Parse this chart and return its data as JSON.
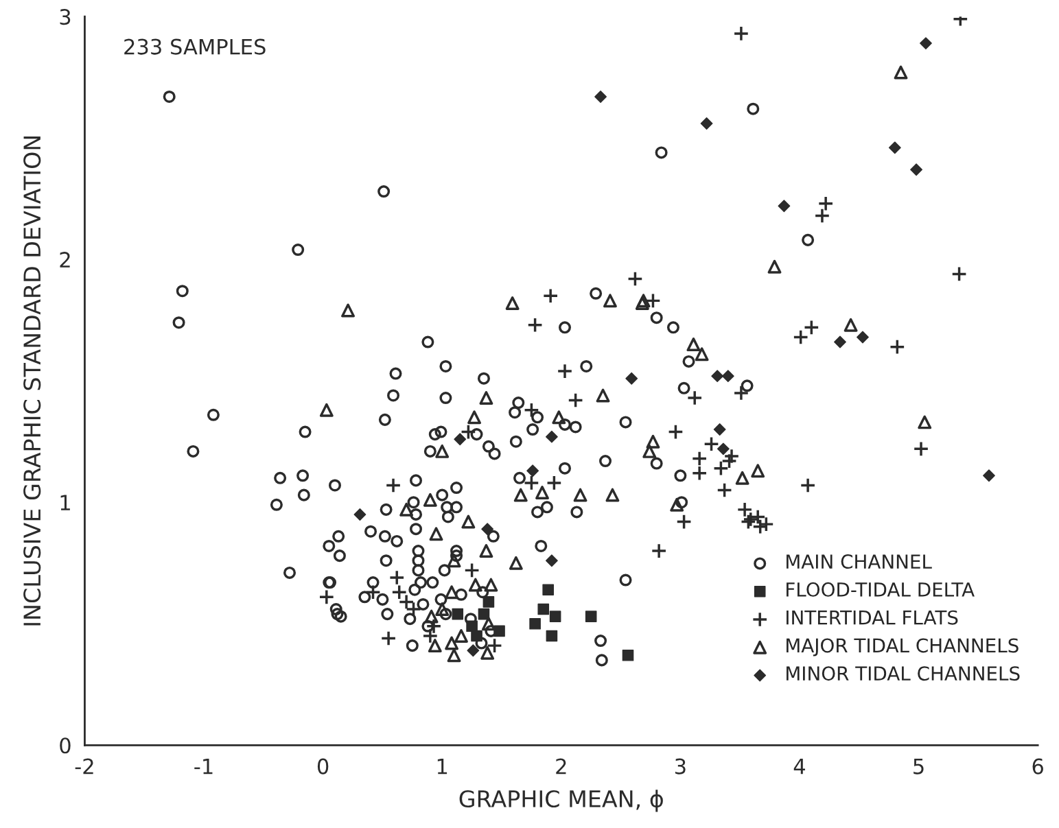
{
  "chart_data": {
    "type": "scatter",
    "xlabel": "GRAPHIC MEAN, ϕ",
    "ylabel": "INCLUSIVE GRAPHIC STANDARD DEVIATION",
    "annotations": [
      "233 SAMPLES"
    ],
    "xlim": [
      -2,
      6
    ],
    "xticks": [
      -2,
      -1,
      0,
      1,
      2,
      3,
      4,
      5,
      6
    ],
    "ylim": [
      0,
      3
    ],
    "yticks": [
      0,
      1,
      2,
      3
    ],
    "grid": false,
    "legend": "bottom right",
    "series": [
      {
        "name": "MAIN CHANNEL",
        "color": "#2b2b2b",
        "marker": "circle",
        "x": [
          -1.29,
          0.51,
          -0.21,
          -1.18,
          -1.21,
          -0.92,
          -1.09,
          -0.15,
          -0.36,
          -0.17,
          -0.39,
          -0.16,
          0.1,
          -0.28,
          0.05,
          0.13,
          0.14,
          0.05,
          0.12,
          0.15,
          0.61,
          0.59,
          0.52,
          0.88,
          1.03,
          1.03,
          1.35,
          0.94,
          0.99,
          0.9,
          1.29,
          1.39,
          1.44,
          0.78,
          0.53,
          0.76,
          1.0,
          1.12,
          1.04,
          1.05,
          0.4,
          0.52,
          0.62,
          0.78,
          0.8,
          0.8,
          0.8,
          0.53,
          0.42,
          0.5,
          1.12,
          1.12,
          1.02,
          0.54,
          0.73,
          0.75,
          0.77,
          0.82,
          0.92,
          0.84,
          0.35,
          0.99,
          1.16,
          1.03,
          1.34,
          1.43,
          1.24,
          1.33,
          0.88,
          1.41,
          1.64,
          1.61,
          1.62,
          1.65,
          0.78,
          1.12,
          2.21,
          1.8,
          2.03,
          2.12,
          1.76,
          2.54,
          2.37,
          2.8,
          3.0,
          2.03,
          1.8,
          1.88,
          2.13,
          3.01,
          3.03,
          3.56,
          3.07,
          2.94,
          2.29,
          2.03,
          2.8,
          2.84,
          3.61,
          4.07,
          2.54,
          2.33,
          2.34,
          1.83,
          0.06,
          0.11
        ],
        "values": [
          2.67,
          2.28,
          2.04,
          1.87,
          1.74,
          1.36,
          1.21,
          1.29,
          1.1,
          1.11,
          0.99,
          1.03,
          1.07,
          0.71,
          0.82,
          0.86,
          0.78,
          0.67,
          0.54,
          0.53,
          1.53,
          1.44,
          1.34,
          1.66,
          1.56,
          1.43,
          1.51,
          1.28,
          1.29,
          1.21,
          1.28,
          1.23,
          1.2,
          1.09,
          0.97,
          1.0,
          1.03,
          1.06,
          0.98,
          0.94,
          0.88,
          0.86,
          0.84,
          0.89,
          0.8,
          0.76,
          0.72,
          0.76,
          0.67,
          0.6,
          0.8,
          0.78,
          0.72,
          0.54,
          0.52,
          0.41,
          0.64,
          0.67,
          0.67,
          0.58,
          0.61,
          0.6,
          0.62,
          0.54,
          0.63,
          0.86,
          0.52,
          0.42,
          0.49,
          0.47,
          1.41,
          1.37,
          1.25,
          1.1,
          0.95,
          0.98,
          1.56,
          1.35,
          1.32,
          1.31,
          1.3,
          1.33,
          1.17,
          1.16,
          1.11,
          1.14,
          0.96,
          0.98,
          0.96,
          1.0,
          1.47,
          1.48,
          1.58,
          1.72,
          1.86,
          1.72,
          1.76,
          2.44,
          2.62,
          2.08,
          0.68,
          0.43,
          0.35,
          0.82,
          0.67,
          0.56
        ]
      },
      {
        "name": "FLOOD-TIDAL DELTA",
        "color": "#2b2b2b",
        "marker": "square",
        "x": [
          1.13,
          1.35,
          1.25,
          1.29,
          1.39,
          1.48,
          1.78,
          1.85,
          1.89,
          1.92,
          1.95,
          2.25,
          2.56
        ],
        "values": [
          0.54,
          0.54,
          0.49,
          0.45,
          0.59,
          0.47,
          0.5,
          0.56,
          0.64,
          0.45,
          0.53,
          0.53,
          0.37
        ]
      },
      {
        "name": "INTERTIDAL FLATS",
        "color": "#2b2b2b",
        "marker": "cross",
        "x": [
          3.51,
          5.35,
          4.22,
          4.19,
          5.34,
          2.62,
          2.77,
          1.91,
          1.78,
          4.01,
          4.1,
          4.82,
          2.03,
          2.12,
          3.12,
          3.51,
          5.02,
          4.07,
          2.82,
          2.96,
          1.75,
          3.26,
          3.43,
          3.16,
          3.41,
          3.16,
          3.34,
          3.37,
          1.75,
          1.94,
          3.03,
          3.54,
          3.59,
          3.65,
          3.67,
          3.72,
          3.57,
          0.03,
          0.62,
          0.42,
          0.64,
          0.7,
          0.76,
          0.55,
          0.93,
          0.9,
          1.25,
          1.44,
          0.59,
          1.22
        ],
        "values": [
          2.93,
          2.99,
          2.23,
          2.18,
          1.94,
          1.92,
          1.83,
          1.85,
          1.73,
          1.68,
          1.72,
          1.64,
          1.54,
          1.42,
          1.43,
          1.45,
          1.22,
          1.07,
          0.8,
          1.29,
          1.38,
          1.24,
          1.19,
          1.18,
          1.17,
          1.12,
          1.14,
          1.05,
          1.08,
          1.08,
          0.92,
          0.97,
          0.93,
          0.94,
          0.9,
          0.91,
          0.92,
          0.61,
          0.69,
          0.63,
          0.63,
          0.59,
          0.56,
          0.44,
          0.49,
          0.45,
          0.72,
          0.41,
          1.07,
          1.29
        ]
      },
      {
        "name": "MAJOR TIDAL CHANNELS",
        "color": "#2b2b2b",
        "marker": "triangle",
        "x": [
          4.85,
          3.79,
          0.21,
          0.03,
          1.59,
          2.41,
          2.68,
          3.11,
          3.18,
          4.43,
          5.05,
          2.35,
          1.37,
          1.27,
          1.98,
          1.0,
          2.77,
          2.74,
          3.65,
          3.52,
          1.66,
          1.84,
          2.16,
          2.43,
          2.97,
          0.7,
          0.9,
          0.95,
          1.22,
          1.37,
          1.62,
          1.1,
          1.28,
          1.41,
          1.08,
          1.0,
          0.91,
          1.16,
          0.94,
          1.08,
          1.1,
          1.39,
          1.38,
          2.69
        ],
        "values": [
          2.77,
          1.97,
          1.79,
          1.38,
          1.82,
          1.83,
          1.82,
          1.65,
          1.61,
          1.73,
          1.33,
          1.44,
          1.43,
          1.35,
          1.35,
          1.21,
          1.25,
          1.21,
          1.13,
          1.1,
          1.03,
          1.04,
          1.03,
          1.03,
          0.99,
          0.97,
          1.01,
          0.87,
          0.92,
          0.8,
          0.75,
          0.76,
          0.66,
          0.66,
          0.63,
          0.56,
          0.53,
          0.45,
          0.41,
          0.42,
          0.37,
          0.5,
          0.38,
          1.83
        ]
      },
      {
        "name": "MINOR TIDAL CHANNELS",
        "color": "#2b2b2b",
        "marker": "diamond",
        "x": [
          5.06,
          2.33,
          3.22,
          4.8,
          4.98,
          3.87,
          4.34,
          4.53,
          5.59,
          2.59,
          3.31,
          3.4,
          3.33,
          3.36,
          1.76,
          1.92,
          1.15,
          0.31,
          1.38,
          1.92,
          1.26
        ],
        "values": [
          2.89,
          2.67,
          2.56,
          2.46,
          2.37,
          2.22,
          1.66,
          1.68,
          1.11,
          1.51,
          1.52,
          1.52,
          1.3,
          1.22,
          1.13,
          1.27,
          1.26,
          0.95,
          0.89,
          0.76,
          0.39
        ]
      }
    ]
  }
}
